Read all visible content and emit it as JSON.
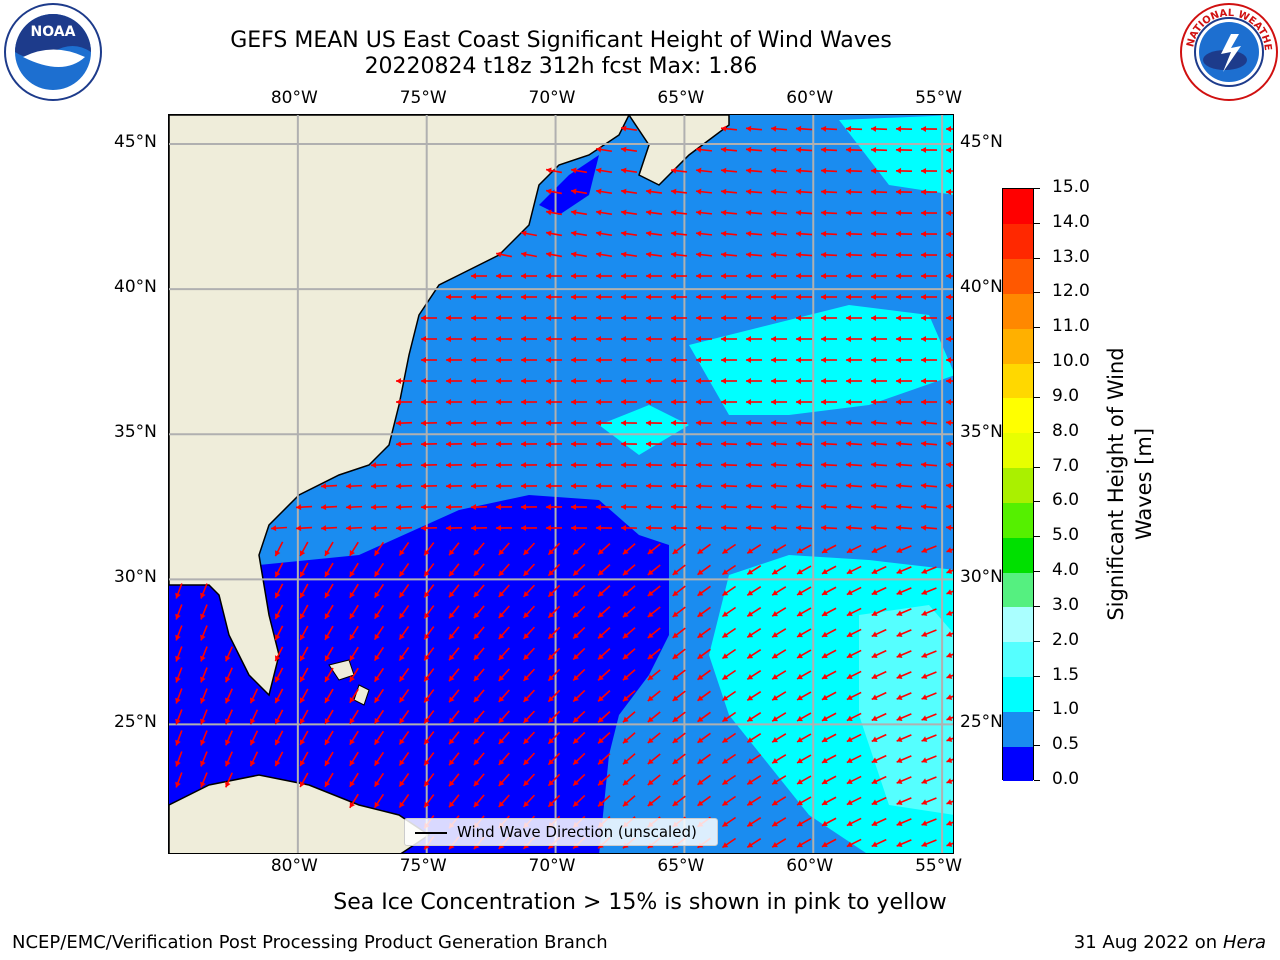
{
  "title": {
    "line1": "GEFS MEAN US East Coast Significant Height of Wind Waves",
    "line2": "20220824 t18z 312h fcst   Max: 1.86"
  },
  "logos": {
    "left": "noaa-logo",
    "left_text": "NOAA",
    "right": "nws-logo",
    "right_text": "NATIONAL WEATHER SERVICE"
  },
  "map": {
    "lon_labels": [
      "80°W",
      "75°W",
      "70°W",
      "65°W",
      "60°W",
      "55°W"
    ],
    "lat_labels": [
      "45°N",
      "40°N",
      "35°N",
      "30°N",
      "25°N"
    ],
    "lon_values": [
      -80,
      -75,
      -70,
      -65,
      -60,
      -55
    ],
    "lat_values": [
      45,
      40,
      35,
      30,
      25
    ],
    "lon_range": [
      -85,
      -54.5
    ],
    "lat_range": [
      20.5,
      46
    ],
    "colors": {
      "land": "#efedda",
      "ocean_low": "#0000ff",
      "ocean_mid": "#1a8cf0",
      "ocean_high": "#00ffff",
      "ocean_higher": "#55ffff",
      "arrow": "#ff0000",
      "grid": "#b0b0b0"
    }
  },
  "legend": {
    "label": "Wind Wave Direction (unscaled)"
  },
  "colorbar": {
    "label": "Significant Height of Wind Waves [m]",
    "ticks": [
      "0.0",
      "0.5",
      "1.0",
      "1.5",
      "2.0",
      "3.0",
      "4.0",
      "5.0",
      "6.0",
      "7.0",
      "8.0",
      "9.0",
      "10.0",
      "11.0",
      "12.0",
      "13.0",
      "14.0",
      "15.0"
    ],
    "colors": [
      "#0000ff",
      "#1a8cf0",
      "#00ffff",
      "#55ffff",
      "#aaffff",
      "#55f080",
      "#00e000",
      "#55f000",
      "#aaf000",
      "#e8ff00",
      "#ffff00",
      "#ffd800",
      "#ffb000",
      "#ff8800",
      "#ff5800",
      "#ff2800",
      "#ff0000"
    ]
  },
  "caption": "Sea Ice Concentration > 15% is shown in pink to yellow",
  "footer": {
    "left": "NCEP/EMC/Verification Post Processing Product Generation Branch",
    "date": "31 Aug 2022 on",
    "host": "Hera"
  }
}
